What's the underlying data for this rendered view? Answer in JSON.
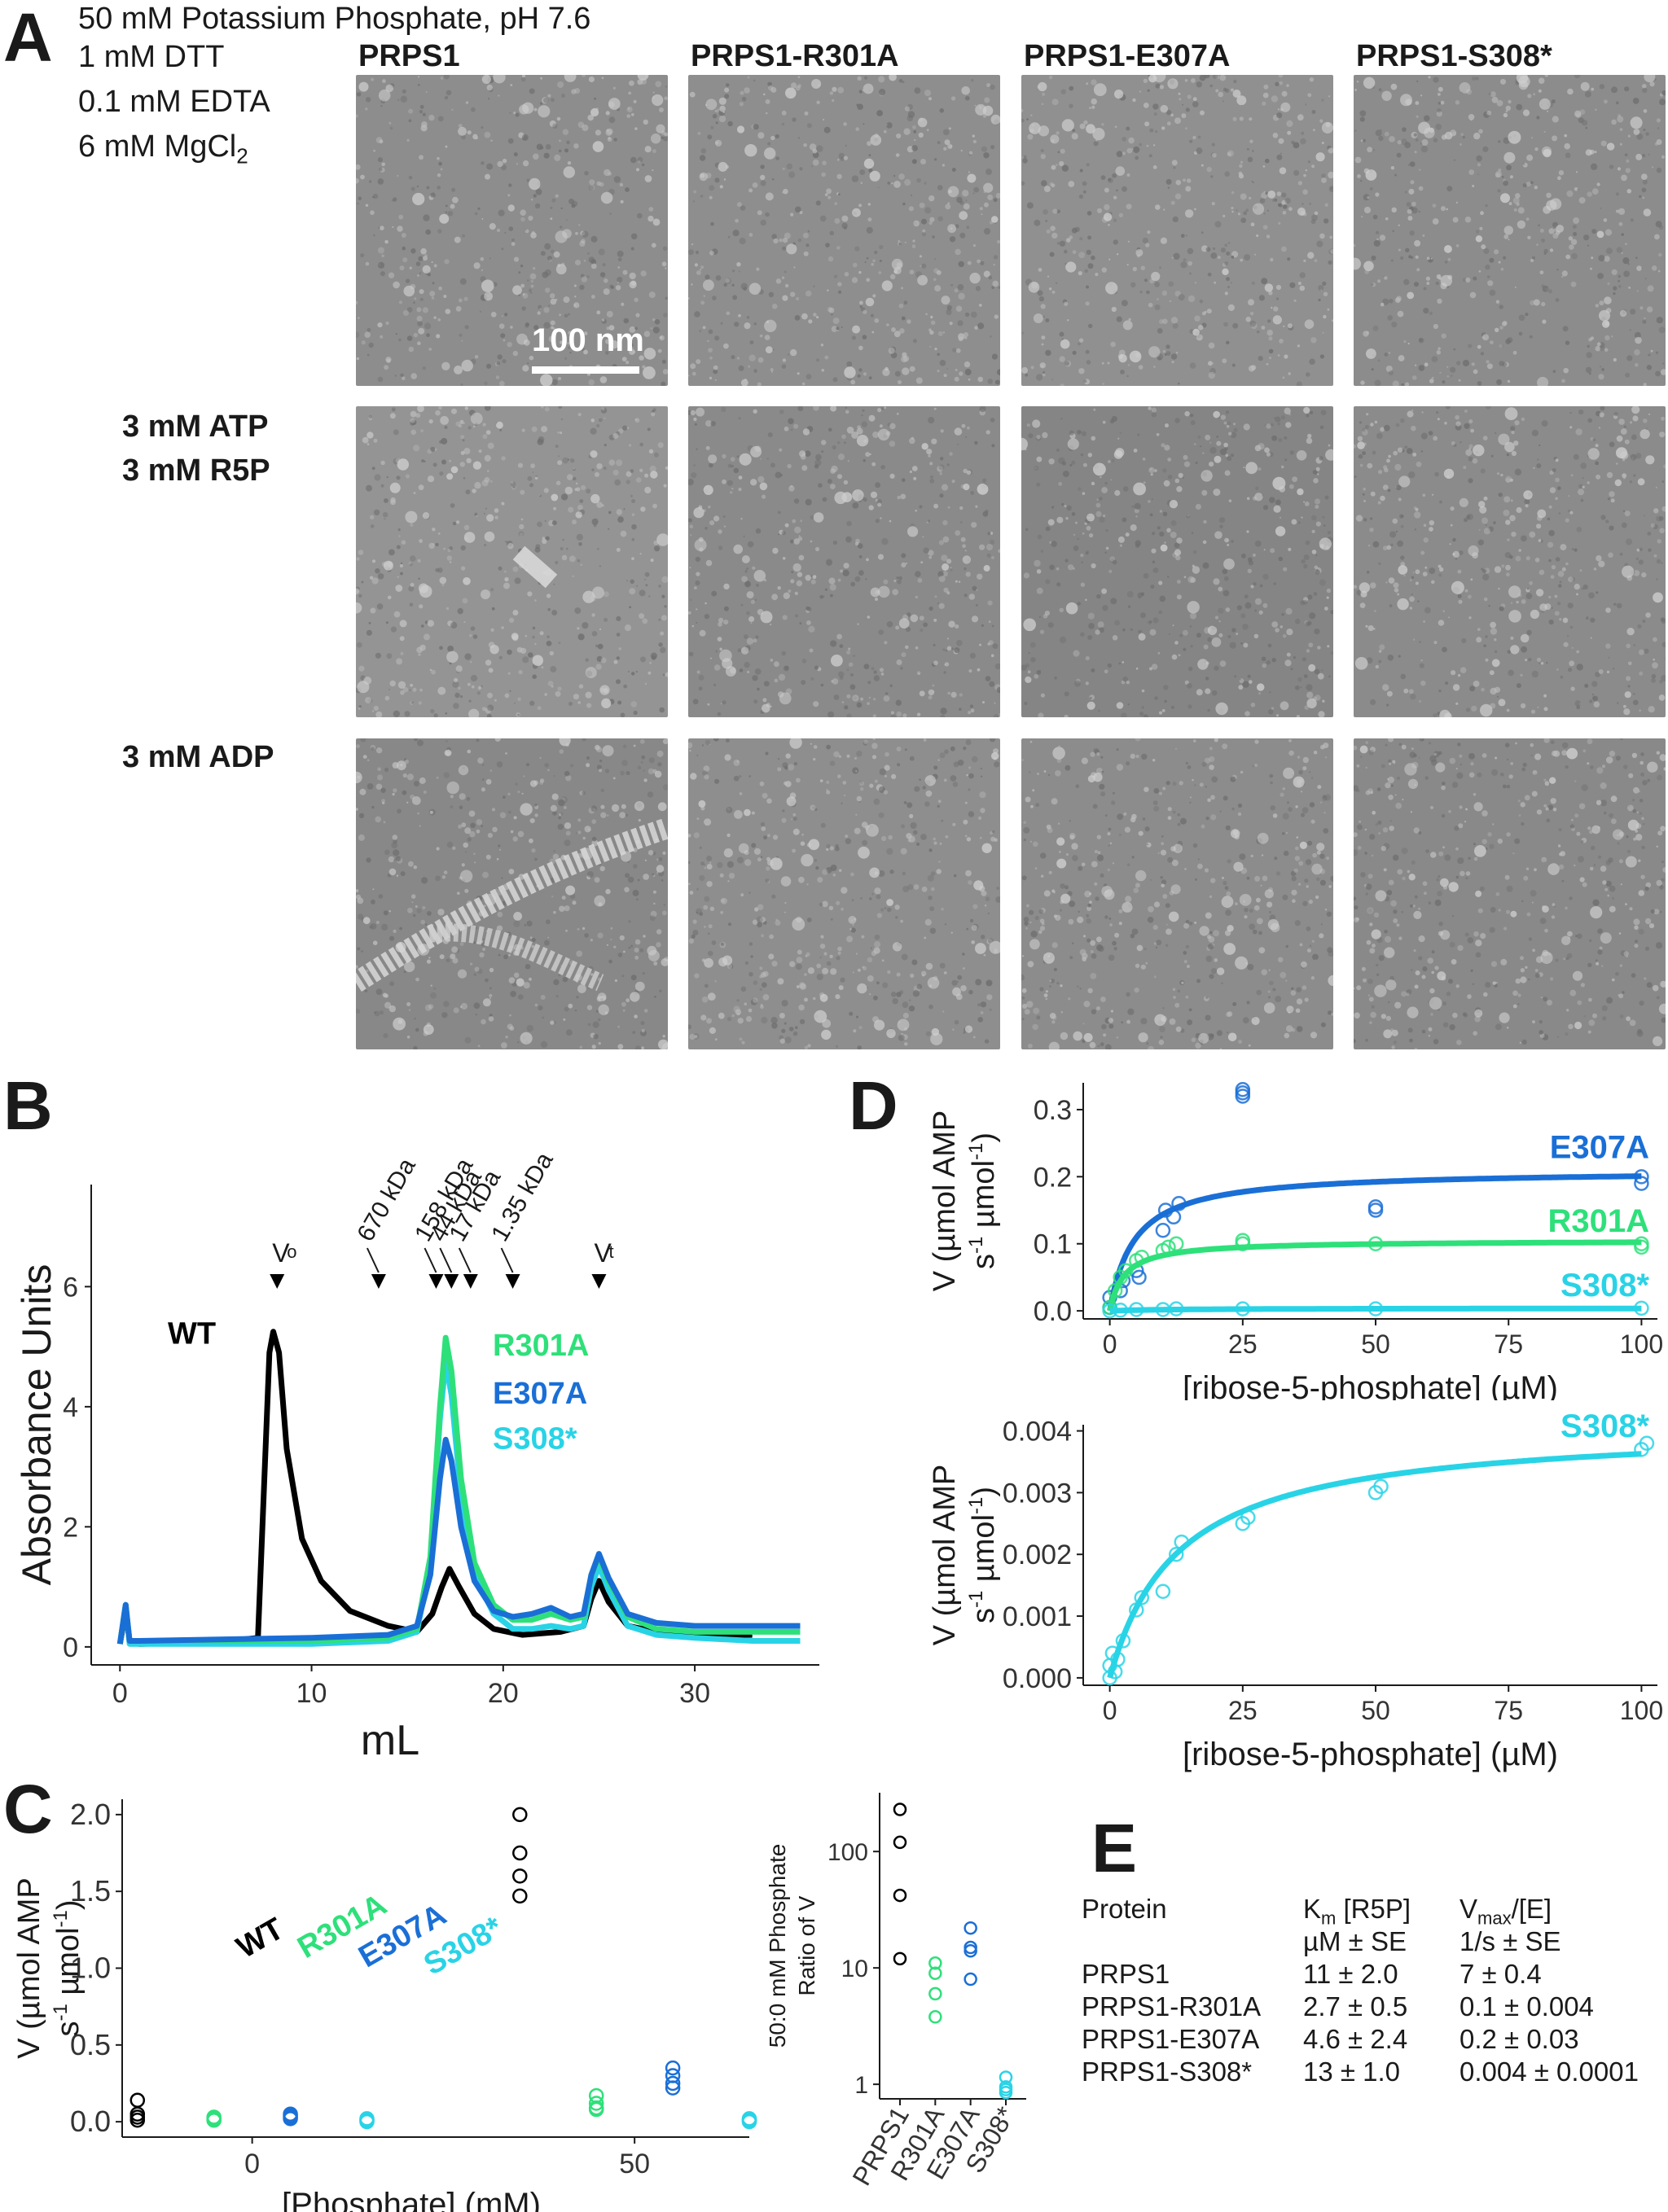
{
  "panel_letters": {
    "a": "A",
    "b": "B",
    "c": "C",
    "d": "D",
    "e": "E"
  },
  "panel_a": {
    "buffer": {
      "line1": "50 mM Potassium Phosphate, pH 7.6",
      "line2": "1 mM DTT",
      "line3": "0.1 mM EDTA",
      "line4_main": "6 mM MgCl",
      "line4_sub": "2"
    },
    "columns": [
      "PRPS1",
      "PRPS1-R301A",
      "PRPS1-E307A",
      "PRPS1-S308*"
    ],
    "rows": [
      {
        "label_lines": [
          "",
          ""
        ]
      },
      {
        "label_lines": [
          "3 mM ATP",
          "3 mM R5P"
        ]
      },
      {
        "label_lines": [
          "3 mM ADP",
          ""
        ]
      }
    ],
    "scale_bar": "100 nm"
  },
  "chart_data": [
    {
      "panel": "B",
      "type": "line",
      "xlabel": "mL",
      "ylabel": "Absorbance Units",
      "xlim": [
        -1.5,
        36.5
      ],
      "ylim": [
        -0.3,
        7.7
      ],
      "xticks": [
        0,
        10,
        20,
        30
      ],
      "yticks": [
        0,
        2,
        4,
        6
      ],
      "markers": [
        {
          "label": "V",
          "sub": "o",
          "x": 8.2
        },
        {
          "label": "670 kDa",
          "x": 13.5
        },
        {
          "label": "158 kDa",
          "x": 16.5
        },
        {
          "label": "44 kDa",
          "x": 17.3
        },
        {
          "label": "17 kDa",
          "x": 18.3
        },
        {
          "label": "1.35 kDa",
          "x": 20.5
        },
        {
          "label": "V",
          "sub": "t",
          "x": 25.0
        }
      ],
      "series": [
        {
          "name": "WT",
          "color": "#000000",
          "x": [
            0,
            0.3,
            0.5,
            1,
            5,
            7.2,
            7.5,
            7.8,
            8.0,
            8.3,
            8.7,
            9.5,
            10.5,
            12,
            14,
            15.5,
            16.3,
            16.8,
            17.2,
            17.7,
            18.5,
            19.5,
            21,
            23,
            24.2,
            24.6,
            25.0,
            25.5,
            26.5,
            28,
            30,
            33
          ],
          "y": [
            0.05,
            0.6,
            0.1,
            0.05,
            0.08,
            0.15,
            2.5,
            4.9,
            5.25,
            4.9,
            3.3,
            1.8,
            1.1,
            0.6,
            0.35,
            0.25,
            0.55,
            1.0,
            1.3,
            1.0,
            0.55,
            0.3,
            0.2,
            0.25,
            0.35,
            0.8,
            1.1,
            0.75,
            0.35,
            0.25,
            0.2,
            0.2
          ]
        },
        {
          "name": "R301A",
          "color": "#2ee07a",
          "x": [
            0,
            0.3,
            0.5,
            1,
            10,
            14,
            15.5,
            16.2,
            16.7,
            17.0,
            17.3,
            17.8,
            18.5,
            19.5,
            20.5,
            21.5,
            22.5,
            23.5,
            24.2,
            24.6,
            25.0,
            25.5,
            26.5,
            28,
            30,
            33,
            35.5
          ],
          "y": [
            0.05,
            0.7,
            0.1,
            0.1,
            0.1,
            0.15,
            0.3,
            1.5,
            4.0,
            5.15,
            4.6,
            2.8,
            1.4,
            0.7,
            0.45,
            0.45,
            0.55,
            0.45,
            0.5,
            1.2,
            1.5,
            1.1,
            0.5,
            0.3,
            0.25,
            0.25,
            0.25
          ]
        },
        {
          "name": "E307A",
          "color": "#1a6fd6",
          "x": [
            0,
            0.3,
            0.5,
            1,
            10,
            14,
            15.5,
            16.2,
            16.7,
            17.0,
            17.3,
            17.8,
            18.5,
            19.5,
            20.5,
            21.5,
            22.5,
            23.5,
            24.2,
            24.6,
            25.0,
            25.5,
            26.5,
            28,
            30,
            33,
            35.5
          ],
          "y": [
            0.05,
            0.7,
            0.1,
            0.1,
            0.15,
            0.2,
            0.35,
            1.2,
            2.8,
            3.45,
            3.1,
            2.0,
            1.1,
            0.6,
            0.5,
            0.55,
            0.65,
            0.5,
            0.55,
            1.2,
            1.55,
            1.15,
            0.55,
            0.4,
            0.35,
            0.35,
            0.35
          ]
        },
        {
          "name": "S308*",
          "color": "#29d3e6",
          "x": [
            0,
            0.3,
            0.5,
            1,
            10,
            14,
            15.5,
            16.2,
            16.7,
            17.0,
            17.3,
            17.8,
            18.5,
            19.5,
            20.5,
            21.5,
            22.5,
            23.5,
            24.2,
            24.6,
            25.0,
            25.5,
            26.5,
            28,
            30,
            33,
            35.5
          ],
          "y": [
            0.05,
            0.7,
            0.05,
            0.05,
            0.05,
            0.1,
            0.25,
            1.4,
            3.8,
            4.75,
            4.2,
            2.5,
            1.2,
            0.55,
            0.3,
            0.3,
            0.35,
            0.3,
            0.35,
            1.0,
            1.35,
            0.95,
            0.35,
            0.2,
            0.15,
            0.1,
            0.1
          ]
        }
      ]
    },
    {
      "panel": "C-left",
      "type": "scatter",
      "xlabel": "[Phosphate] (mM)",
      "ylabel_lines": [
        "V (µmol AMP",
        "s",
        "-1",
        " µmol",
        "-1",
        ")"
      ],
      "xlim": [
        -17,
        65
      ],
      "ylim": [
        -0.1,
        2.1
      ],
      "xticks": [
        0,
        50
      ],
      "yticks": [
        0.0,
        0.5,
        1.0,
        1.5,
        2.0
      ],
      "ytick_labels": [
        "0.0",
        "0.5",
        "1.0",
        "1.5",
        "2.0"
      ],
      "series": [
        {
          "name": "WT",
          "color": "#000000",
          "x": [
            -15,
            -15,
            -15,
            -15,
            35,
            35,
            35,
            35
          ],
          "y": [
            0.14,
            0.05,
            0.03,
            0.01,
            2.0,
            1.75,
            1.6,
            1.47
          ]
        },
        {
          "name": "R301A",
          "color": "#2ee07a",
          "x": [
            -5,
            -5,
            -5,
            -5,
            45,
            45,
            45,
            45
          ],
          "y": [
            0.03,
            0.02,
            0.01,
            0.01,
            0.17,
            0.12,
            0.09,
            0.08
          ]
        },
        {
          "name": "E307A",
          "color": "#1a6fd6",
          "x": [
            5,
            5,
            5,
            5,
            55,
            55,
            55,
            55
          ],
          "y": [
            0.05,
            0.04,
            0.03,
            0.02,
            0.35,
            0.3,
            0.25,
            0.22
          ]
        },
        {
          "name": "S308*",
          "color": "#29d3e6",
          "x": [
            15,
            15,
            15,
            15,
            65,
            65,
            65,
            65
          ],
          "y": [
            0.02,
            0.01,
            0.01,
            0.0,
            0.02,
            0.01,
            0.01,
            0.0
          ]
        }
      ],
      "labels": [
        {
          "text": "WT",
          "color": "#000000"
        },
        {
          "text": "R301A",
          "color": "#2ee07a"
        },
        {
          "text": "E307A",
          "color": "#1a6fd6"
        },
        {
          "text": "S308*",
          "color": "#29d3e6"
        }
      ]
    },
    {
      "panel": "C-right",
      "type": "scatter",
      "ylabel_lines": [
        "50:0 mM Phosphate",
        "Ratio of V"
      ],
      "yscale": "log",
      "ylim": [
        0.75,
        320
      ],
      "yticks": [
        1,
        10,
        100
      ],
      "categories": [
        "PRPS1",
        "R301A",
        "E307A",
        "S308*"
      ],
      "series": [
        {
          "name": "PRPS1",
          "color": "#000000",
          "values": [
            230,
            120,
            42,
            12
          ]
        },
        {
          "name": "R301A",
          "color": "#2ee07a",
          "values": [
            11,
            9,
            6,
            3.8
          ]
        },
        {
          "name": "E307A",
          "color": "#1a6fd6",
          "values": [
            22,
            15,
            14,
            8
          ]
        },
        {
          "name": "S308*",
          "color": "#29d3e6",
          "values": [
            1.15,
            0.95,
            0.9,
            0.85
          ]
        }
      ]
    },
    {
      "panel": "D-top",
      "type": "scatter",
      "xlabel": "[ribose-5-phosphate] (µM)",
      "ylabel_lines": [
        "V (µmol AMP",
        "s",
        "-1",
        " µmol",
        "-1",
        ")"
      ],
      "xlim": [
        -5,
        103
      ],
      "ylim": [
        -0.012,
        0.34
      ],
      "xticks": [
        0,
        25,
        50,
        75,
        100
      ],
      "yticks": [
        0.0,
        0.1,
        0.2,
        0.3
      ],
      "ytick_labels": [
        "0.0",
        "0.1",
        "0.2",
        "0.3"
      ],
      "series": [
        {
          "name": "E307A",
          "color": "#1a6fd6",
          "km": 4.6,
          "vmax": 0.21,
          "x": [
            0,
            0,
            2,
            2.5,
            5,
            5.5,
            10,
            10.5,
            12,
            13,
            25,
            25,
            25,
            50,
            50,
            100,
            100
          ],
          "y": [
            0.005,
            0.02,
            0.03,
            0.045,
            0.06,
            0.05,
            0.12,
            0.15,
            0.14,
            0.16,
            0.33,
            0.325,
            0.32,
            0.15,
            0.155,
            0.19,
            0.2
          ]
        },
        {
          "name": "R301A",
          "color": "#2ee07a",
          "km": 2.7,
          "vmax": 0.105,
          "x": [
            0,
            1,
            2,
            3,
            5,
            6,
            10,
            11,
            12.5,
            25,
            25,
            50,
            100,
            100
          ],
          "y": [
            0.005,
            0.03,
            0.05,
            0.06,
            0.075,
            0.08,
            0.09,
            0.095,
            0.1,
            0.1,
            0.105,
            0.1,
            0.1,
            0.095
          ]
        },
        {
          "name": "S308*",
          "color": "#29d3e6",
          "km": 13,
          "vmax": 0.004,
          "x": [
            0,
            2,
            5,
            10,
            12.5,
            25,
            50,
            100
          ],
          "y": [
            0.0,
            0.001,
            0.002,
            0.002,
            0.003,
            0.003,
            0.003,
            0.004
          ]
        }
      ]
    },
    {
      "panel": "D-bottom",
      "type": "scatter",
      "xlabel": "[ribose-5-phosphate] (µM)",
      "ylabel_lines": [
        "V (µmol AMP",
        "s",
        "-1",
        " µmol",
        "-1",
        ")"
      ],
      "xlim": [
        -5,
        103
      ],
      "ylim": [
        -0.00012,
        0.0041
      ],
      "xticks": [
        0,
        25,
        50,
        75,
        100
      ],
      "yticks": [
        0.0,
        0.001,
        0.002,
        0.003,
        0.004
      ],
      "ytick_labels": [
        "0.000",
        "0.001",
        "0.002",
        "0.003",
        "0.004"
      ],
      "series": [
        {
          "name": "S308*",
          "color": "#29d3e6",
          "km": 13,
          "vmax": 0.0041,
          "x": [
            0,
            0,
            0.5,
            1,
            1.5,
            2.5,
            5,
            6,
            10,
            12.5,
            13.5,
            25,
            26,
            50,
            51,
            100,
            101
          ],
          "y": [
            0.0,
            0.0002,
            0.0004,
            0.0001,
            0.0003,
            0.0006,
            0.0011,
            0.0013,
            0.0014,
            0.002,
            0.0022,
            0.0025,
            0.0026,
            0.003,
            0.0031,
            0.0037,
            0.0038
          ]
        }
      ]
    }
  ],
  "panel_e": {
    "col_protein": [
      "Protein",
      "",
      "PRPS1",
      "PRPS1-R301A",
      "PRPS1-E307A",
      "PRPS1-S308*"
    ],
    "km_head_main": "K",
    "km_head_sub": "m",
    "km_head_rest": " [R5P]",
    "km_units": "µM ± SE",
    "km_values": [
      "11 ± 2.0",
      "2.7 ± 0.5",
      "4.6 ± 2.4",
      "13 ± 1.0"
    ],
    "vmax_head_main": "V",
    "vmax_head_sub": "max",
    "vmax_head_rest": "/[E]",
    "vmax_units": "1/s ± SE",
    "vmax_values": [
      "7 ± 0.4",
      "0.1 ± 0.004",
      "0.2 ± 0.03",
      "0.004 ± 0.0001"
    ]
  }
}
